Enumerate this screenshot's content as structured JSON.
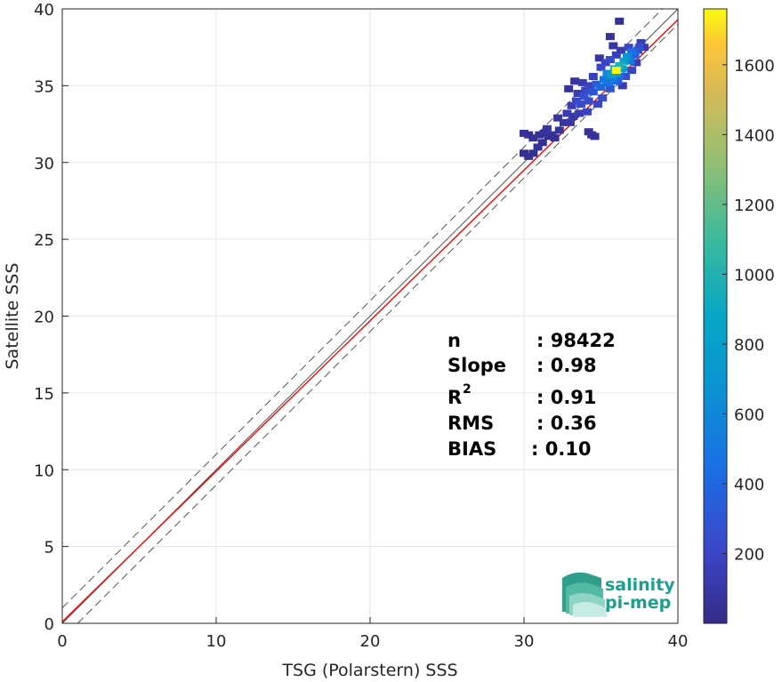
{
  "chart_data": {
    "type": "scatter",
    "subtype": "density-scatter",
    "xlabel": "TSG (Polarstern) SSS",
    "ylabel": "Satellite SSS",
    "xlim": [
      0,
      40
    ],
    "ylim": [
      0,
      40
    ],
    "xticks": [
      "0",
      "10",
      "20",
      "30",
      "40"
    ],
    "yticks": [
      "0",
      "5",
      "10",
      "15",
      "20",
      "25",
      "30",
      "35",
      "40"
    ],
    "grid": true,
    "colormap": "parula",
    "colorbar": {
      "range": [
        0,
        1760
      ],
      "ticks": [
        "200",
        "400",
        "600",
        "800",
        "1000",
        "1200",
        "1400",
        "1600"
      ],
      "tick_values": [
        200,
        400,
        600,
        800,
        1000,
        1200,
        1400,
        1600
      ]
    },
    "reference_lines": {
      "identity": {
        "slope": 1,
        "intercept": 0,
        "color": "#444444",
        "style": "solid"
      },
      "upper_bound": {
        "slope": 1,
        "intercept": 1,
        "color": "#444444",
        "style": "dashed"
      },
      "lower_bound": {
        "slope": 1,
        "intercept": -1,
        "color": "#444444",
        "style": "dashed"
      },
      "fit": {
        "slope": 0.98,
        "intercept": 0.1,
        "color": "#ff0000",
        "style": "solid"
      }
    },
    "points": [
      {
        "x": 30.0,
        "y": 31.9,
        "c": 60
      },
      {
        "x": 30.3,
        "y": 31.8,
        "c": 40
      },
      {
        "x": 30.6,
        "y": 31.6,
        "c": 50
      },
      {
        "x": 31.0,
        "y": 31.8,
        "c": 40
      },
      {
        "x": 31.3,
        "y": 31.9,
        "c": 60
      },
      {
        "x": 31.6,
        "y": 31.7,
        "c": 40
      },
      {
        "x": 31.8,
        "y": 31.8,
        "c": 50
      },
      {
        "x": 32.0,
        "y": 31.6,
        "c": 40
      },
      {
        "x": 30.6,
        "y": 30.6,
        "c": 50
      },
      {
        "x": 30.9,
        "y": 31.0,
        "c": 60
      },
      {
        "x": 31.2,
        "y": 31.3,
        "c": 40
      },
      {
        "x": 30.0,
        "y": 30.6,
        "c": 40
      },
      {
        "x": 30.3,
        "y": 30.4,
        "c": 50
      },
      {
        "x": 31.5,
        "y": 32.2,
        "c": 80
      },
      {
        "x": 32.3,
        "y": 32.1,
        "c": 70
      },
      {
        "x": 32.2,
        "y": 32.9,
        "c": 90
      },
      {
        "x": 32.6,
        "y": 32.6,
        "c": 80
      },
      {
        "x": 33.0,
        "y": 32.6,
        "c": 100
      },
      {
        "x": 32.8,
        "y": 33.2,
        "c": 120
      },
      {
        "x": 33.2,
        "y": 33.0,
        "c": 110
      },
      {
        "x": 33.6,
        "y": 33.2,
        "c": 130
      },
      {
        "x": 34.4,
        "y": 31.8,
        "c": 60
      },
      {
        "x": 34.6,
        "y": 31.7,
        "c": 50
      },
      {
        "x": 34.2,
        "y": 32.0,
        "c": 60
      },
      {
        "x": 33.1,
        "y": 33.7,
        "c": 150
      },
      {
        "x": 33.4,
        "y": 34.0,
        "c": 200
      },
      {
        "x": 33.7,
        "y": 33.8,
        "c": 220
      },
      {
        "x": 33.9,
        "y": 34.3,
        "c": 260
      },
      {
        "x": 34.2,
        "y": 34.0,
        "c": 240
      },
      {
        "x": 34.0,
        "y": 34.7,
        "c": 200
      },
      {
        "x": 33.5,
        "y": 34.5,
        "c": 150
      },
      {
        "x": 33.8,
        "y": 35.2,
        "c": 120
      },
      {
        "x": 34.3,
        "y": 35.0,
        "c": 180
      },
      {
        "x": 34.5,
        "y": 34.6,
        "c": 300
      },
      {
        "x": 34.7,
        "y": 35.1,
        "c": 350
      },
      {
        "x": 35.0,
        "y": 34.9,
        "c": 400
      },
      {
        "x": 35.2,
        "y": 35.4,
        "c": 500
      },
      {
        "x": 35.5,
        "y": 35.2,
        "c": 450
      },
      {
        "x": 35.4,
        "y": 35.8,
        "c": 600
      },
      {
        "x": 35.7,
        "y": 35.7,
        "c": 800
      },
      {
        "x": 35.9,
        "y": 36.1,
        "c": 900
      },
      {
        "x": 36.0,
        "y": 35.8,
        "c": 700
      },
      {
        "x": 36.2,
        "y": 36.3,
        "c": 1000
      },
      {
        "x": 36.4,
        "y": 36.1,
        "c": 750
      },
      {
        "x": 36.5,
        "y": 36.6,
        "c": 800
      },
      {
        "x": 36.7,
        "y": 36.9,
        "c": 650
      },
      {
        "x": 36.9,
        "y": 36.6,
        "c": 500
      },
      {
        "x": 37.0,
        "y": 37.2,
        "c": 450
      },
      {
        "x": 37.2,
        "y": 37.0,
        "c": 350
      },
      {
        "x": 37.4,
        "y": 37.3,
        "c": 300
      },
      {
        "x": 37.5,
        "y": 37.5,
        "c": 250
      },
      {
        "x": 35.0,
        "y": 36.2,
        "c": 200
      },
      {
        "x": 35.3,
        "y": 36.5,
        "c": 180
      },
      {
        "x": 35.6,
        "y": 36.7,
        "c": 220
      },
      {
        "x": 36.0,
        "y": 37.0,
        "c": 150
      },
      {
        "x": 36.3,
        "y": 37.3,
        "c": 120
      },
      {
        "x": 35.8,
        "y": 37.6,
        "c": 80
      },
      {
        "x": 35.1,
        "y": 34.2,
        "c": 250
      },
      {
        "x": 35.6,
        "y": 34.8,
        "c": 300
      },
      {
        "x": 36.1,
        "y": 35.3,
        "c": 350
      },
      {
        "x": 36.6,
        "y": 35.6,
        "c": 250
      },
      {
        "x": 37.0,
        "y": 36.0,
        "c": 200
      },
      {
        "x": 34.8,
        "y": 33.8,
        "c": 200
      },
      {
        "x": 34.1,
        "y": 33.3,
        "c": 180
      },
      {
        "x": 33.3,
        "y": 35.3,
        "c": 90
      },
      {
        "x": 32.9,
        "y": 34.8,
        "c": 70
      },
      {
        "x": 34.9,
        "y": 36.8,
        "c": 100
      },
      {
        "x": 35.6,
        "y": 38.2,
        "c": 60
      },
      {
        "x": 36.2,
        "y": 39.2,
        "c": 40
      },
      {
        "x": 37.6,
        "y": 37.8,
        "c": 150
      },
      {
        "x": 37.8,
        "y": 37.5,
        "c": 120
      },
      {
        "x": 36.8,
        "y": 37.5,
        "c": 200
      },
      {
        "x": 34.5,
        "y": 35.6,
        "c": 160
      },
      {
        "x": 36.4,
        "y": 35.0,
        "c": 130
      },
      {
        "x": 36.0,
        "y": 36.0,
        "c": 1750
      },
      {
        "x": 35.8,
        "y": 35.4,
        "c": 500
      },
      {
        "x": 36.2,
        "y": 35.6,
        "c": 400
      },
      {
        "x": 37.3,
        "y": 36.5,
        "c": 150
      }
    ]
  },
  "stats": [
    {
      "key": "n",
      "value": ": 98422"
    },
    {
      "key": "Slope",
      "value": ": 0.98"
    },
    {
      "key": "R",
      "sup": "2",
      "value": ": 0.91"
    },
    {
      "key": "RMS",
      "value": ": 0.36"
    },
    {
      "key": "BIAS",
      "value": ": 0.10"
    }
  ],
  "logo": {
    "line1": "salinity",
    "line2": "pi-mep"
  }
}
